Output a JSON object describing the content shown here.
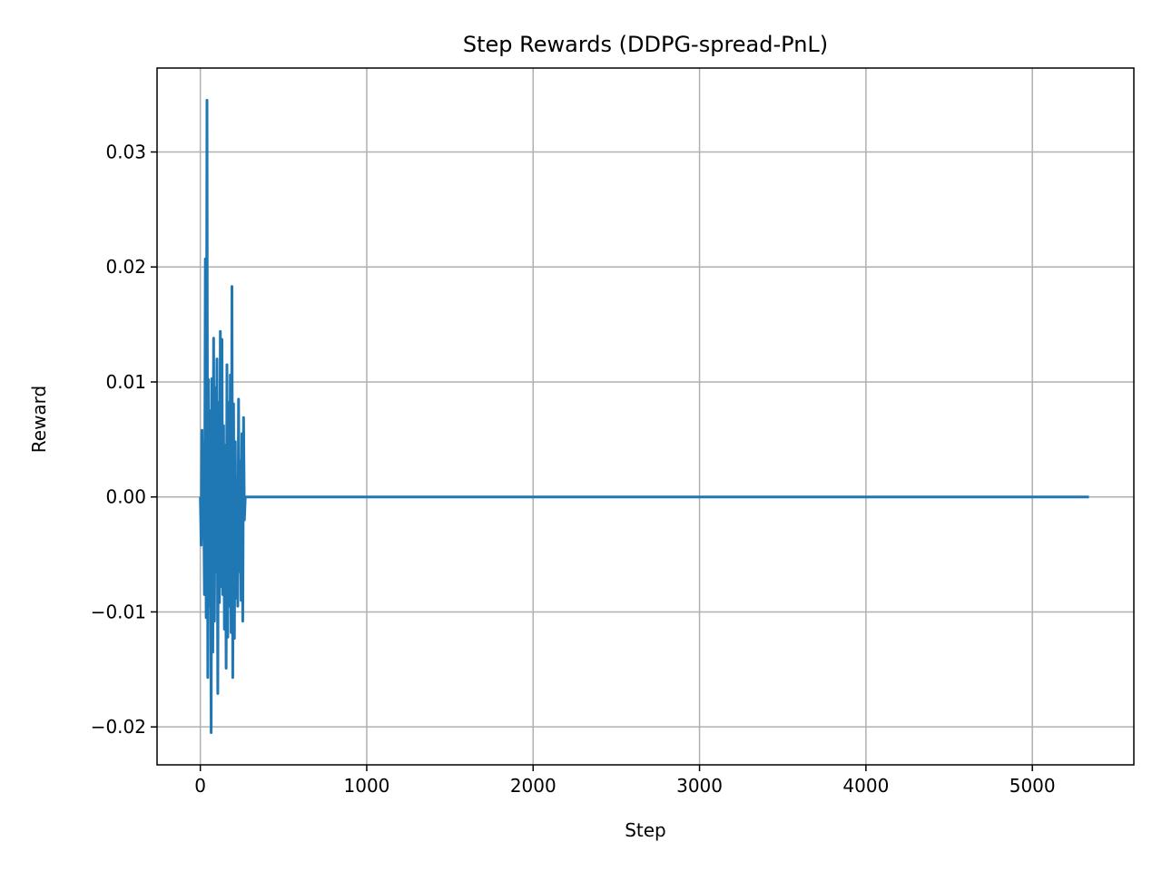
{
  "chart_data": {
    "type": "line",
    "title": "Step Rewards (DDPG-spread-PnL)",
    "xlabel": "Step",
    "ylabel": "Reward",
    "xlim": [
      -260,
      5610
    ],
    "ylim": [
      -0.0233,
      0.0373
    ],
    "xticks": [
      0,
      1000,
      2000,
      3000,
      4000,
      5000
    ],
    "yticks": [
      -0.02,
      -0.01,
      0.0,
      0.01,
      0.02,
      0.03
    ],
    "xtick_labels": [
      "0",
      "1000",
      "2000",
      "3000",
      "4000",
      "5000"
    ],
    "ytick_labels": [
      "−0.02",
      "−0.01",
      "0.00",
      "0.01",
      "0.02",
      "0.03"
    ],
    "grid": true,
    "series": [
      {
        "color": "#1f77b4",
        "x": [
          0,
          5,
          10,
          15,
          20,
          25,
          30,
          35,
          40,
          45,
          50,
          55,
          60,
          65,
          70,
          75,
          80,
          85,
          90,
          95,
          100,
          105,
          110,
          115,
          120,
          125,
          130,
          135,
          140,
          145,
          150,
          155,
          160,
          165,
          170,
          175,
          180,
          185,
          190,
          195,
          200,
          205,
          210,
          215,
          220,
          225,
          230,
          235,
          240,
          245,
          250,
          255,
          260,
          265,
          270,
          275,
          280,
          285,
          290,
          295,
          300,
          305,
          310,
          315,
          320,
          325,
          330,
          340,
          5340
        ],
        "y": [
          0.0,
          -0.0042,
          0.0058,
          -0.0035,
          0.0005,
          -0.0085,
          0.0207,
          -0.0105,
          0.0345,
          -0.0157,
          0.0102,
          -0.0095,
          0.0075,
          -0.0205,
          0.0103,
          -0.0135,
          0.0138,
          -0.0108,
          0.0095,
          -0.0065,
          0.012,
          -0.0171,
          0.0082,
          -0.0092,
          0.0144,
          -0.0078,
          0.0137,
          -0.0085,
          0.0062,
          -0.0115,
          0.0045,
          -0.0149,
          0.0115,
          -0.0122,
          0.0082,
          -0.0095,
          0.0106,
          -0.0118,
          0.0183,
          -0.0157,
          0.0081,
          -0.0123,
          0.0048,
          -0.0088,
          0.0012,
          -0.0095,
          0.0085,
          -0.0065,
          0.0031,
          -0.009,
          0.0055,
          -0.0108,
          0.0069,
          -0.002,
          0.0,
          0.0,
          0.0,
          0.0,
          0.0,
          0.0,
          0.0,
          0.0,
          0.0,
          0.0,
          0.0,
          0.0,
          0.0,
          0.0,
          0.0
        ]
      }
    ]
  }
}
